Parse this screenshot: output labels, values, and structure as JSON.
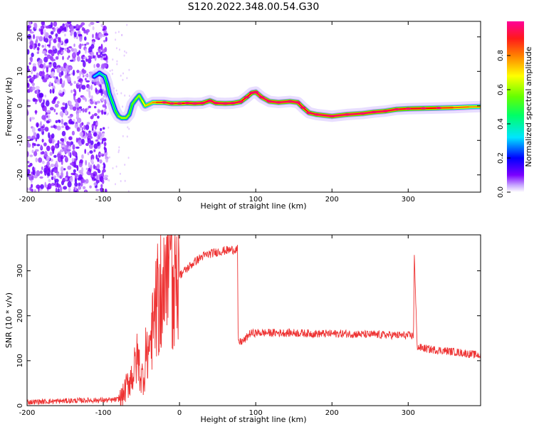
{
  "figure": {
    "title": "S120.2022.348.00.54.G30"
  },
  "chart_data": [
    {
      "type": "heatmap",
      "xlabel": "Height of straight line (km)",
      "ylabel": "Frequency (Hz)",
      "xlim": [
        -200,
        395
      ],
      "ylim": [
        -25,
        24.5
      ],
      "x_ticks": [
        -200,
        -100,
        0,
        100,
        200,
        300
      ],
      "y_ticks": [
        -20,
        -10,
        0,
        10,
        20
      ],
      "ridge": [
        {
          "x": -112,
          "y": 8.5,
          "a": 0.35
        },
        {
          "x": -105,
          "y": 9.5,
          "a": 0.4
        },
        {
          "x": -98,
          "y": 8.5,
          "a": 0.45
        },
        {
          "x": -95,
          "y": 6.5,
          "a": 0.5
        },
        {
          "x": -92,
          "y": 3.5,
          "a": 0.5
        },
        {
          "x": -88,
          "y": 1.0,
          "a": 0.45
        },
        {
          "x": -84,
          "y": -1.5,
          "a": 0.5
        },
        {
          "x": -80,
          "y": -3.0,
          "a": 0.55
        },
        {
          "x": -76,
          "y": -3.5,
          "a": 0.6
        },
        {
          "x": -70,
          "y": -3.5,
          "a": 0.6
        },
        {
          "x": -66,
          "y": -2.5,
          "a": 0.55
        },
        {
          "x": -62,
          "y": 0.5,
          "a": 0.5
        },
        {
          "x": -57,
          "y": 2.0,
          "a": 0.6
        },
        {
          "x": -53,
          "y": 3.0,
          "a": 0.55
        },
        {
          "x": -49,
          "y": 1.5,
          "a": 0.6
        },
        {
          "x": -45,
          "y": 0.0,
          "a": 0.65
        },
        {
          "x": -40,
          "y": 0.5,
          "a": 0.7
        },
        {
          "x": -35,
          "y": 1.0,
          "a": 0.7
        },
        {
          "x": -30,
          "y": 1.0,
          "a": 0.8
        },
        {
          "x": -20,
          "y": 1.0,
          "a": 0.85
        },
        {
          "x": -10,
          "y": 0.7,
          "a": 0.85
        },
        {
          "x": 0,
          "y": 0.7,
          "a": 0.85
        },
        {
          "x": 10,
          "y": 0.8,
          "a": 0.9
        },
        {
          "x": 20,
          "y": 0.7,
          "a": 0.95
        },
        {
          "x": 30,
          "y": 0.8,
          "a": 0.95
        },
        {
          "x": 40,
          "y": 1.5,
          "a": 0.9
        },
        {
          "x": 48,
          "y": 0.8,
          "a": 0.95
        },
        {
          "x": 60,
          "y": 0.7,
          "a": 0.95
        },
        {
          "x": 70,
          "y": 0.8,
          "a": 0.95
        },
        {
          "x": 80,
          "y": 1.2,
          "a": 0.9
        },
        {
          "x": 88,
          "y": 2.5,
          "a": 0.9
        },
        {
          "x": 95,
          "y": 3.8,
          "a": 0.9
        },
        {
          "x": 100,
          "y": 4.0,
          "a": 0.95
        },
        {
          "x": 108,
          "y": 2.5,
          "a": 0.95
        },
        {
          "x": 118,
          "y": 1.3,
          "a": 0.95
        },
        {
          "x": 130,
          "y": 1.0,
          "a": 0.95
        },
        {
          "x": 145,
          "y": 1.3,
          "a": 0.95
        },
        {
          "x": 155,
          "y": 1.0,
          "a": 0.95
        },
        {
          "x": 162,
          "y": -0.5,
          "a": 0.9
        },
        {
          "x": 170,
          "y": -2.0,
          "a": 0.9
        },
        {
          "x": 180,
          "y": -2.5,
          "a": 0.95
        },
        {
          "x": 200,
          "y": -3.0,
          "a": 0.95
        },
        {
          "x": 220,
          "y": -2.5,
          "a": 0.95
        },
        {
          "x": 240,
          "y": -2.2,
          "a": 0.95
        },
        {
          "x": 255,
          "y": -1.8,
          "a": 0.95
        },
        {
          "x": 270,
          "y": -1.5,
          "a": 0.95
        },
        {
          "x": 285,
          "y": -1.0,
          "a": 0.9
        },
        {
          "x": 300,
          "y": -0.8,
          "a": 0.9
        },
        {
          "x": 320,
          "y": -0.7,
          "a": 0.9
        },
        {
          "x": 340,
          "y": -0.6,
          "a": 0.85
        },
        {
          "x": 360,
          "y": -0.5,
          "a": 0.8
        },
        {
          "x": 380,
          "y": -0.3,
          "a": 0.75
        },
        {
          "x": 395,
          "y": -0.2,
          "a": 0.7
        }
      ],
      "colorbar": {
        "label": "Normalized spectral amplitude",
        "range": [
          0,
          1
        ],
        "ticks": [
          0.0,
          0.2,
          0.4,
          0.6,
          0.8
        ],
        "tick_labels": [
          "0.0",
          "0.2",
          "0.4",
          "0.6",
          "0.8"
        ],
        "colormap": [
          "#ffffff",
          "#7b00ff",
          "#0000ff",
          "#00e5ff",
          "#00ff00",
          "#ffff00",
          "#ff8000",
          "#ff0000",
          "#ff00aa"
        ]
      }
    },
    {
      "type": "line",
      "xlabel": "Height of straight line (km)",
      "ylabel": "SNR (10 * v/v)",
      "xlim": [
        -200,
        395
      ],
      "ylim": [
        0,
        380
      ],
      "x_ticks": [
        -200,
        -100,
        0,
        100,
        200,
        300
      ],
      "y_ticks": [
        0,
        100,
        200,
        300
      ],
      "line_color": "#ee3333",
      "points": [
        [
          -200,
          8
        ],
        [
          -160,
          10
        ],
        [
          -120,
          12
        ],
        [
          -90,
          12
        ],
        [
          -80,
          14
        ],
        [
          -75,
          20
        ],
        [
          -70,
          40
        ],
        [
          -65,
          60
        ],
        [
          -60,
          75
        ],
        [
          -55,
          110
        ],
        [
          -50,
          60
        ],
        [
          -45,
          80
        ],
        [
          -40,
          130
        ],
        [
          -35,
          170
        ],
        [
          -30,
          215
        ],
        [
          -25,
          225
        ],
        [
          -20,
          245
        ],
        [
          -15,
          260
        ],
        [
          -10,
          240
        ],
        [
          -5,
          270
        ],
        [
          0,
          290
        ],
        [
          10,
          305
        ],
        [
          20,
          320
        ],
        [
          30,
          332
        ],
        [
          40,
          338
        ],
        [
          50,
          342
        ],
        [
          60,
          345
        ],
        [
          70,
          347
        ],
        [
          76,
          348
        ],
        [
          77,
          140
        ],
        [
          85,
          145
        ],
        [
          92,
          160
        ],
        [
          100,
          162
        ],
        [
          120,
          162
        ],
        [
          150,
          162
        ],
        [
          180,
          160
        ],
        [
          200,
          160
        ],
        [
          220,
          160
        ],
        [
          250,
          158
        ],
        [
          280,
          157
        ],
        [
          300,
          156
        ],
        [
          307,
          155
        ],
        [
          308,
          340
        ],
        [
          310,
          220
        ],
        [
          312,
          130
        ],
        [
          330,
          125
        ],
        [
          360,
          120
        ],
        [
          380,
          115
        ],
        [
          395,
          112
        ]
      ]
    }
  ]
}
